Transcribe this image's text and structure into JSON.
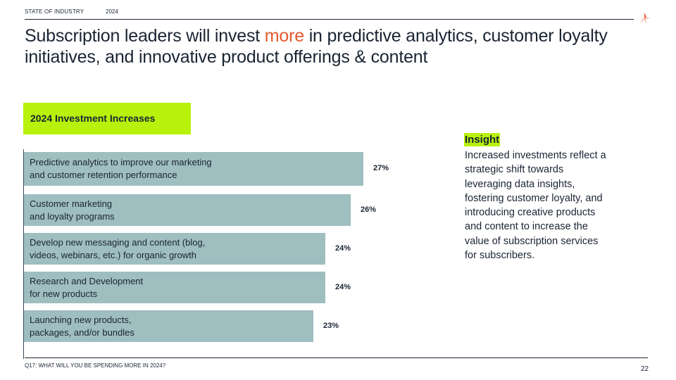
{
  "header": {
    "section": "STATE OF INDUSTRY",
    "year": "2024"
  },
  "logo": {
    "icon": "asterisk-logo-icon",
    "color": "#e35a2f"
  },
  "title": {
    "before": "Subscription leaders will invest ",
    "accent": "more",
    "after": " in predictive analytics, customer loyalty initiatives, and innovative product offerings & content"
  },
  "colors": {
    "accent": "#e35a2f",
    "highlight": "#b8f20c",
    "bar": "#9fbec0",
    "text": "#1a2433"
  },
  "chart_data": {
    "type": "bar",
    "orientation": "horizontal",
    "title": "2024 Investment Increases",
    "categories": [
      [
        "Predictive analytics to improve our marketing",
        "and customer retention performance"
      ],
      [
        "Customer marketing",
        "and loyalty programs"
      ],
      [
        "Develop new messaging and content (blog,",
        "videos, webinars, etc.) for organic growth"
      ],
      [
        "Research and Development",
        "for new products"
      ],
      [
        "Launching new products,",
        "packages, and/or bundles"
      ]
    ],
    "values": [
      27,
      26,
      24,
      24,
      23
    ],
    "value_labels": [
      "27%",
      "26%",
      "24%",
      "24%",
      "23%"
    ],
    "unit": "%"
  },
  "insight": {
    "heading": "Insight",
    "text": "Increased investments reflect a strategic shift towards leveraging data insights, fostering customer loyalty, and introducing creative products and content to increase the value of subscription services for subscribers."
  },
  "footer": {
    "question": "Q17: WHAT WILL YOU BE SPENDING MORE IN 2024?",
    "page": "22"
  }
}
